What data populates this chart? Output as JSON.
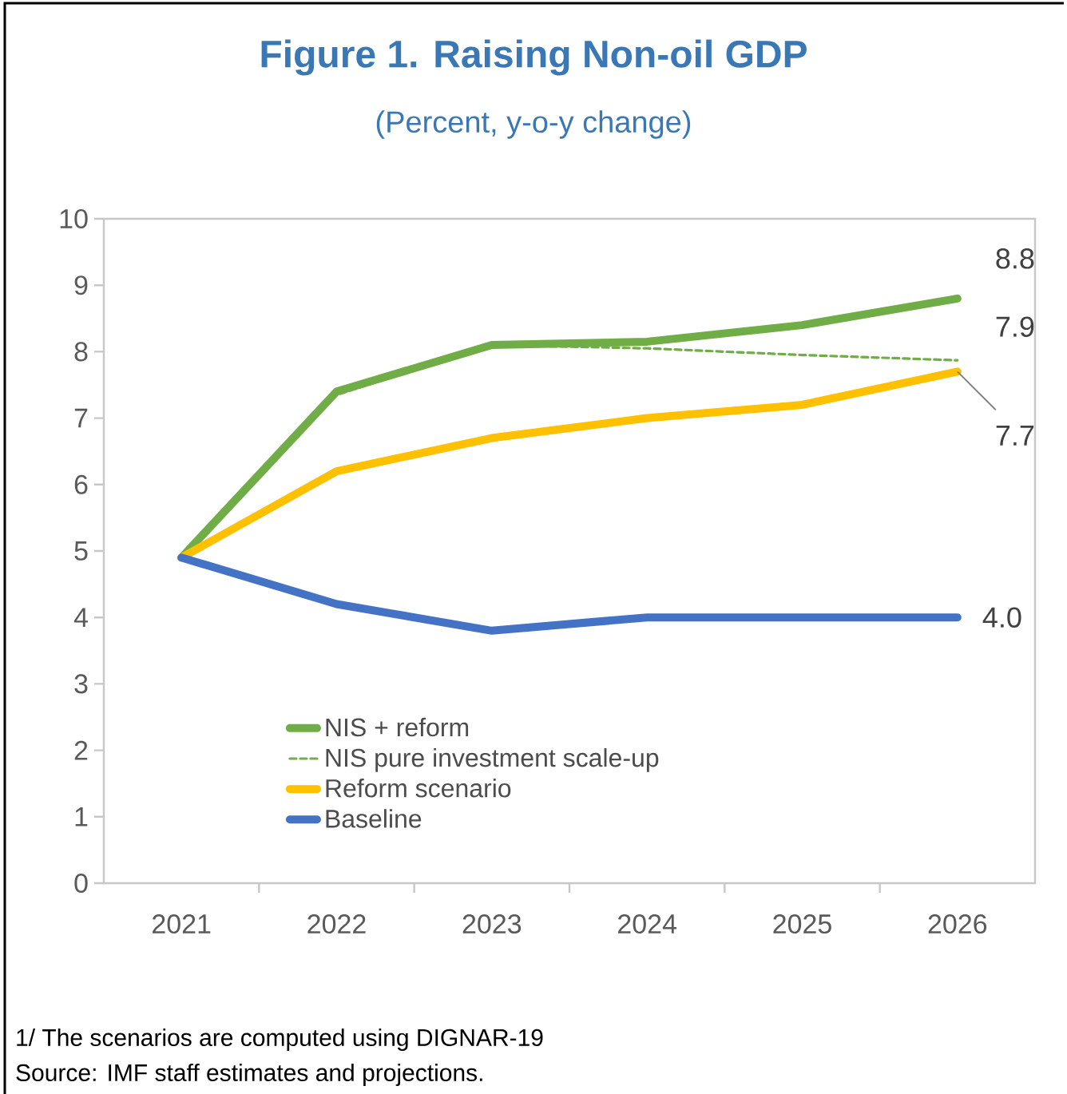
{
  "chart_data": {
    "type": "line",
    "title": "Figure 1. Raising Non-oil GDP",
    "subtitle": "(Percent, y-o-y change)",
    "categories": [
      "2021",
      "2022",
      "2023",
      "2024",
      "2025",
      "2026"
    ],
    "series": [
      {
        "name": "NIS + reform",
        "color": "#70ad47",
        "line_style": "solid",
        "values": [
          4.9,
          7.4,
          8.1,
          8.15,
          8.4,
          8.8
        ],
        "value_labels": [
          null,
          null,
          null,
          null,
          null,
          "8.8"
        ]
      },
      {
        "name": "NIS pure investment scale-up",
        "color": "#70ad47",
        "line_style": "dashed",
        "values": [
          4.9,
          7.35,
          8.1,
          8.05,
          7.95,
          7.87
        ],
        "value_labels": [
          null,
          null,
          null,
          null,
          null,
          "7.9"
        ]
      },
      {
        "name": "Reform scenario",
        "color": "#ffc000",
        "line_style": "solid",
        "values": [
          4.9,
          6.2,
          6.7,
          7.0,
          7.2,
          7.7
        ],
        "value_labels": [
          null,
          null,
          null,
          null,
          null,
          "7.7"
        ]
      },
      {
        "name": "Baseline",
        "color": "#4472c4",
        "line_style": "solid",
        "values": [
          4.9,
          4.2,
          3.8,
          4.0,
          4.0,
          4.0
        ],
        "value_labels": [
          null,
          null,
          null,
          null,
          null,
          "4.0"
        ]
      }
    ],
    "ylim": [
      0,
      10
    ],
    "yticks": [
      0,
      1,
      2,
      3,
      4,
      5,
      6,
      7,
      8,
      9,
      10
    ],
    "legend": "bottom left",
    "marker": "none",
    "annotations": [
      "1/ The scenarios are computed using DIGNAR-19",
      "Source: IMF staff estimates and projections."
    ]
  }
}
